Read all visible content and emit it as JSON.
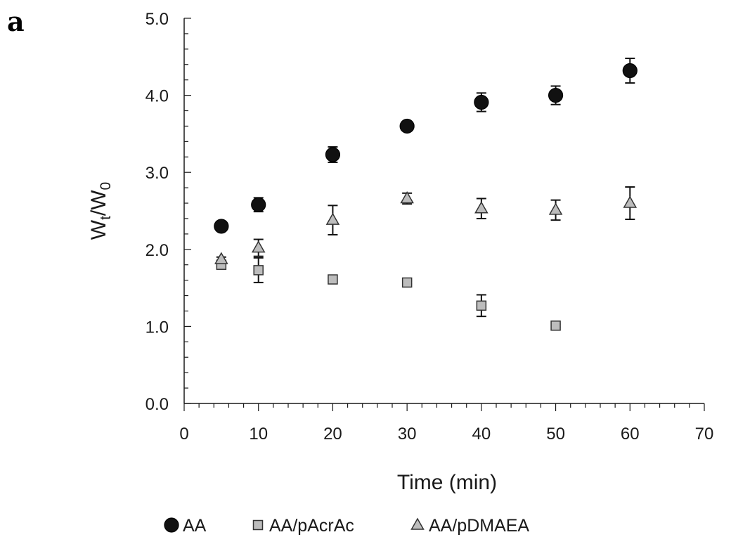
{
  "panel_label": "a",
  "chart_data": {
    "type": "scatter",
    "title": "",
    "xlabel": "Time (min)",
    "ylabel": "Wt/W0",
    "ylabel_parts": {
      "main1": "W",
      "sub1": "t",
      "mid": "/W",
      "sub2": "0"
    },
    "xlim": [
      0,
      70
    ],
    "ylim": [
      0,
      5
    ],
    "x_ticks": [
      "0",
      "10",
      "20",
      "30",
      "40",
      "50",
      "60",
      "70"
    ],
    "y_ticks": [
      "0.0",
      "1.0",
      "2.0",
      "3.0",
      "4.0",
      "5.0"
    ],
    "x_minor_step": 2,
    "y_minor_step": 0.2,
    "grid": false,
    "legend_position": "bottom",
    "series": [
      {
        "name": "AA",
        "marker": "circle",
        "color": "#111111",
        "x": [
          5,
          10,
          20,
          30,
          40,
          50,
          60
        ],
        "y": [
          2.3,
          2.58,
          3.23,
          3.6,
          3.91,
          4.0,
          4.32
        ],
        "err": [
          0.03,
          0.09,
          0.1,
          0.03,
          0.12,
          0.12,
          0.16
        ]
      },
      {
        "name": "AA/pAcrAc",
        "marker": "square",
        "color": "#bdbdbd",
        "x": [
          5,
          10,
          20,
          30,
          40,
          50
        ],
        "y": [
          1.8,
          1.73,
          1.61,
          1.57,
          1.27,
          1.01
        ],
        "err": [
          0.02,
          0.16,
          0.02,
          0.02,
          0.14,
          0.02
        ]
      },
      {
        "name": "AA/pDMAEA",
        "marker": "triangle",
        "color": "#bdbdbd",
        "x": [
          5,
          10,
          20,
          30,
          40,
          50,
          60
        ],
        "y": [
          1.87,
          2.02,
          2.38,
          2.66,
          2.53,
          2.51,
          2.6
        ],
        "err": [
          0.03,
          0.11,
          0.19,
          0.07,
          0.13,
          0.13,
          0.21
        ]
      }
    ]
  }
}
